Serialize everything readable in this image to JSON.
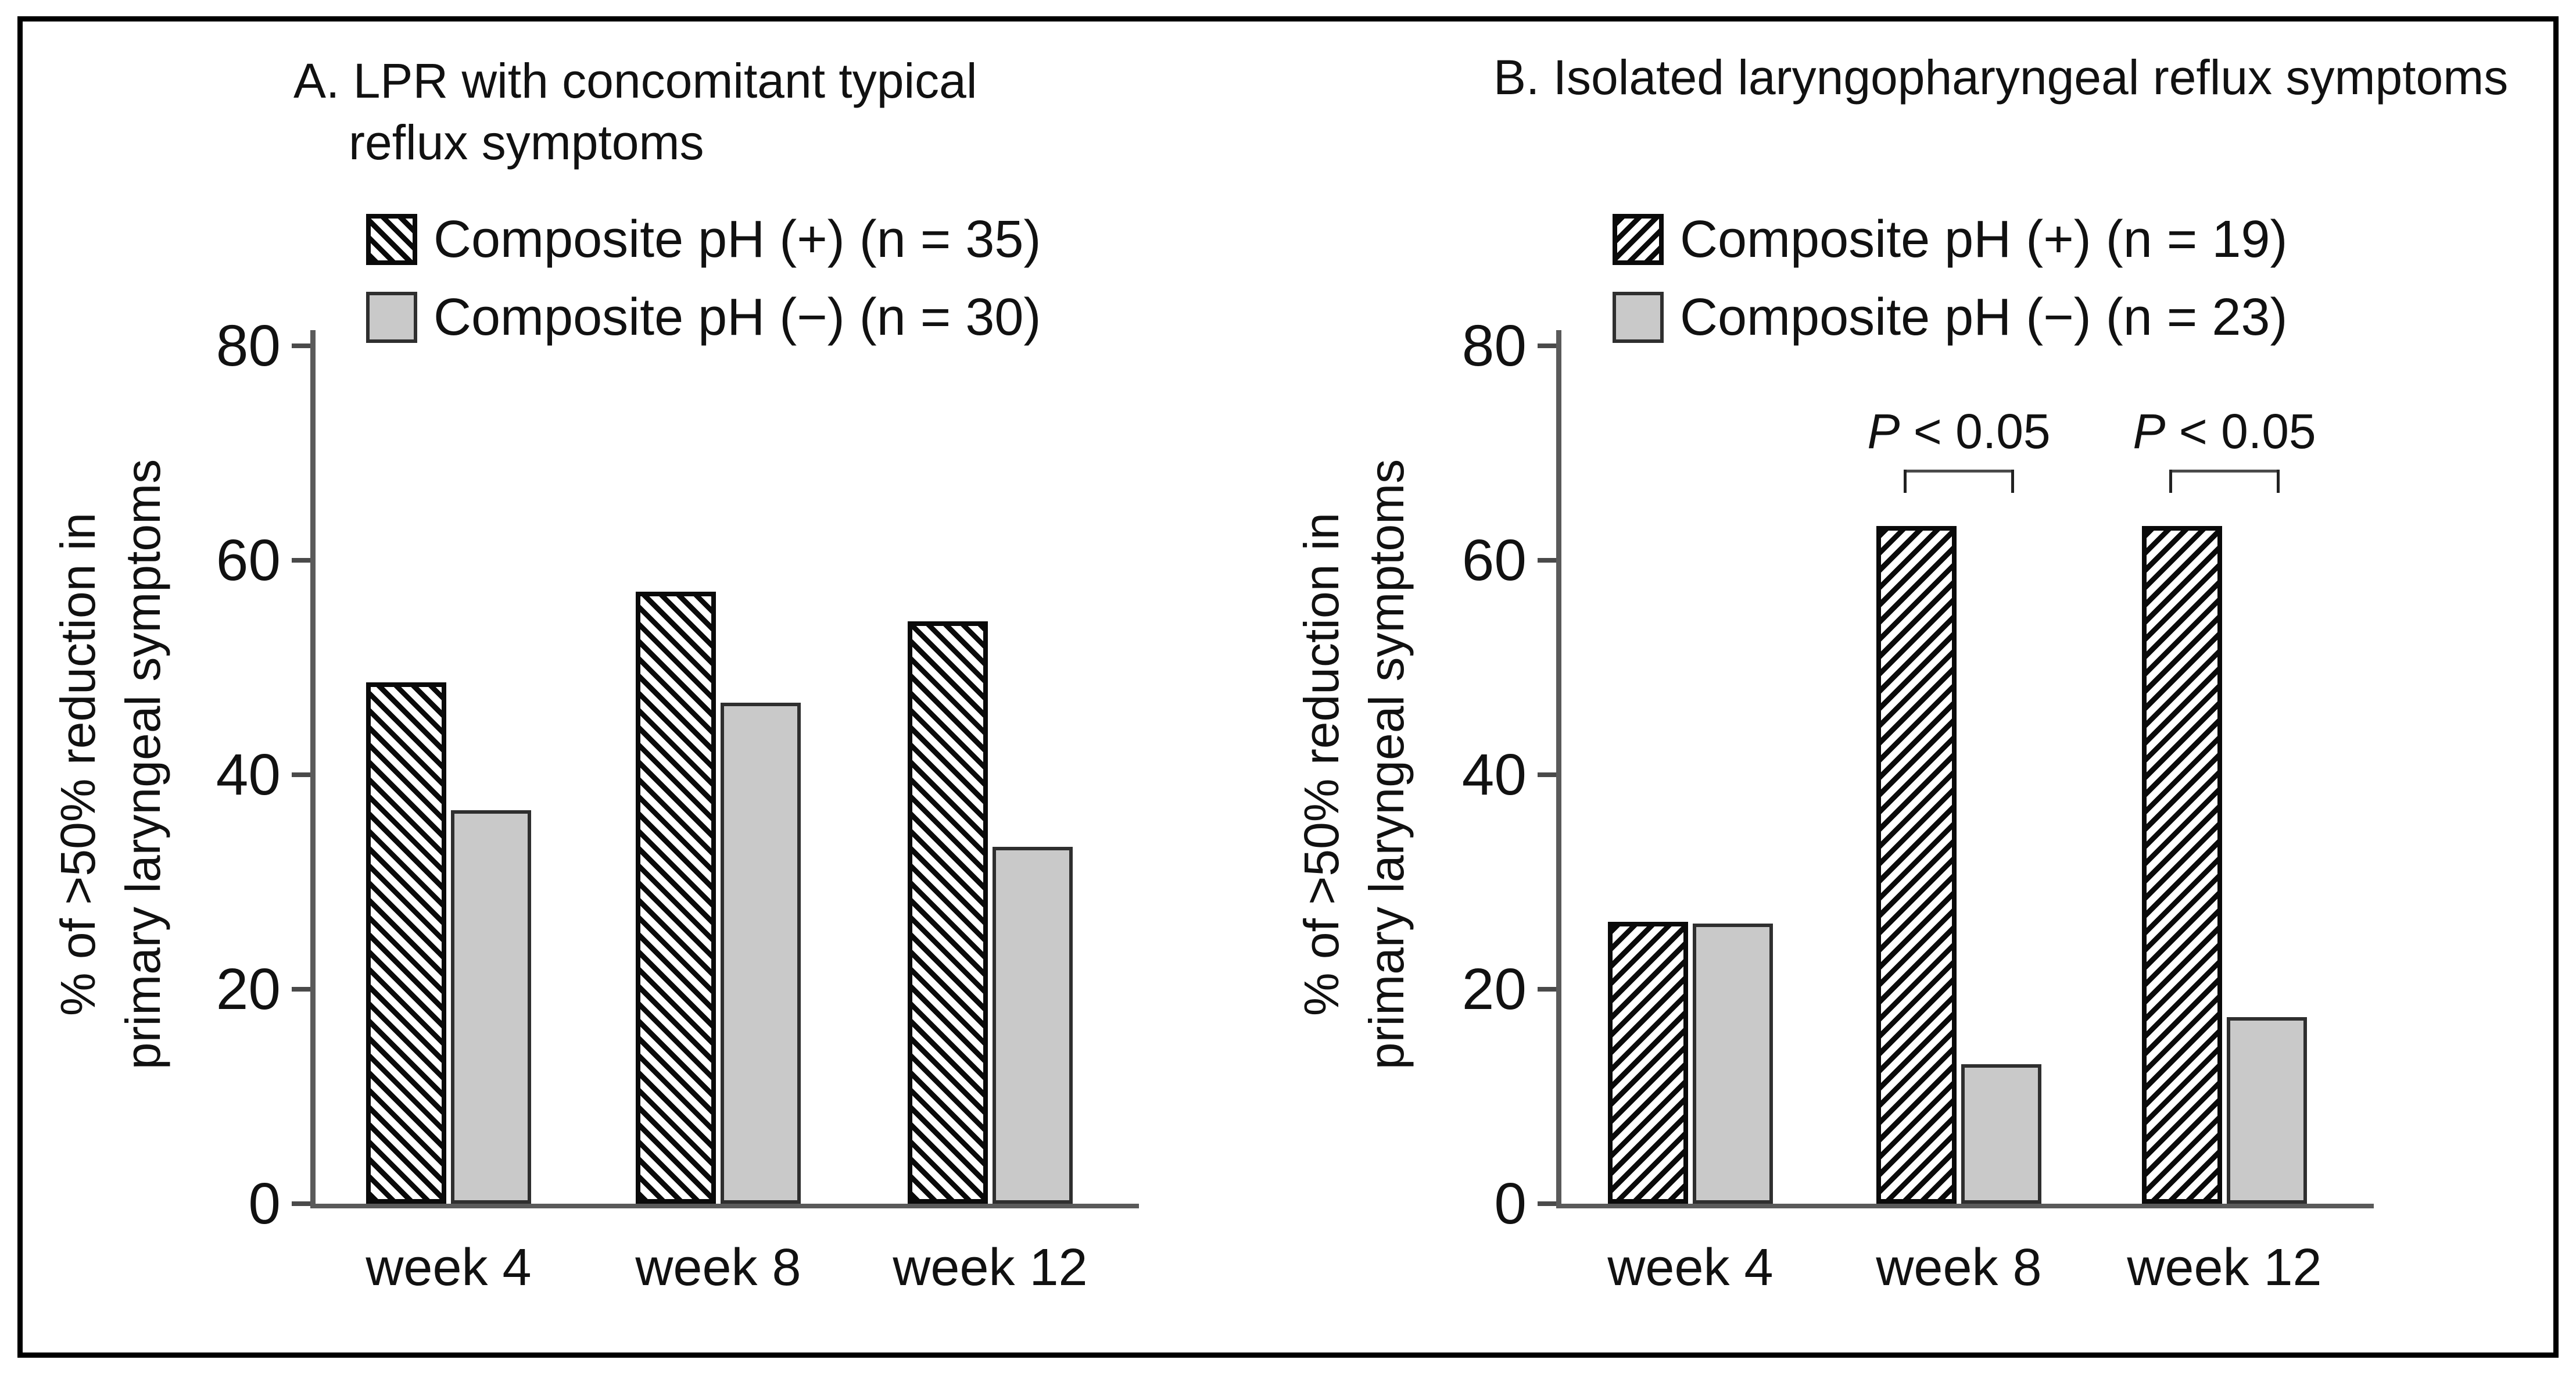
{
  "figure": {
    "kind": "two-panel grouped bar chart, study figure",
    "background": "#ffffff"
  },
  "colors": {
    "frame": "#000000",
    "text": "#111111",
    "axis_gray": "#5a5a5a",
    "bar_gray_fill": "#c9c9c9",
    "hatch_black": "#0a0a0a"
  },
  "chart_data": [
    {
      "panel": "A",
      "type": "bar",
      "title_lines": [
        "A. LPR with concomitant typical",
        "reflux symptoms"
      ],
      "categories": [
        "week 4",
        "week 8",
        "week 12"
      ],
      "series": [
        {
          "name": "Composite pH (+) (n = 35)",
          "style": "hatch-backslash",
          "values": [
            48.6,
            57.1,
            54.3
          ]
        },
        {
          "name": "Composite pH (−) (n = 30)",
          "style": "solid-gray",
          "values": [
            36.7,
            46.7,
            33.3
          ]
        }
      ],
      "ylabel_lines": [
        "% of >50% reduction in",
        "primary laryngeal symptoms"
      ],
      "ylim": [
        0,
        80
      ],
      "yticks": [
        0,
        20,
        40,
        60,
        80
      ],
      "grid": false,
      "legend_position": "top",
      "annotations": []
    },
    {
      "panel": "B",
      "type": "bar",
      "title_lines": [
        "B. Isolated laryngopharyngeal reflux symptoms"
      ],
      "categories": [
        "week 4",
        "week 8",
        "week 12"
      ],
      "series": [
        {
          "name": "Composite pH (+) (n = 19)",
          "style": "hatch-forwardslash",
          "values": [
            26.3,
            63.2,
            63.2
          ]
        },
        {
          "name": "Composite pH (−) (n = 23)",
          "style": "solid-gray",
          "values": [
            26.1,
            13.0,
            17.4
          ]
        }
      ],
      "ylabel_lines": [
        "% of >50% reduction in",
        "primary laryngeal symptoms"
      ],
      "ylim": [
        0,
        80
      ],
      "yticks": [
        0,
        20,
        40,
        60,
        80
      ],
      "grid": false,
      "legend_position": "top",
      "annotations": [
        {
          "text_italic": "P",
          "text_rest": " < 0.05",
          "category_index": 1
        },
        {
          "text_italic": "P",
          "text_rest": " < 0.05",
          "category_index": 2
        }
      ]
    }
  ]
}
